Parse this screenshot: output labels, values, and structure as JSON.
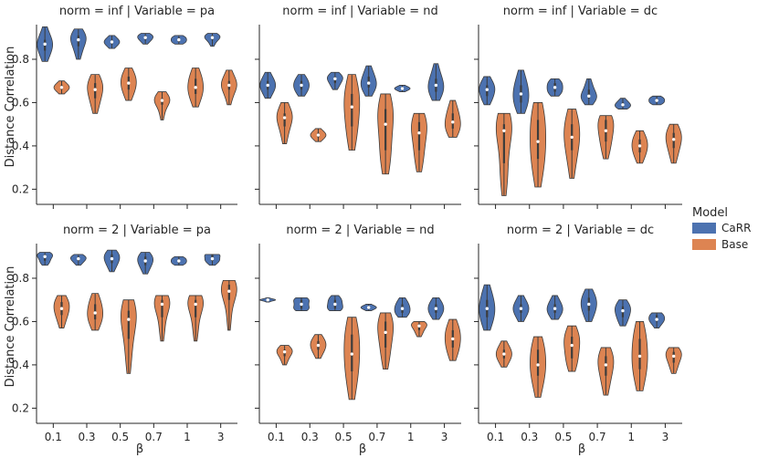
{
  "chart_data": {
    "type": "violin",
    "ylabel": "Distance Correlation",
    "xlabel": "β",
    "categories": [
      "0.1",
      "0.3",
      "0.5",
      "0.7",
      "1",
      "3"
    ],
    "ylim": [
      0.13,
      0.96
    ],
    "yticks": [
      0.2,
      0.4,
      0.6,
      0.8
    ],
    "legend": {
      "title": "Model",
      "position": "right",
      "entries": [
        {
          "name": "CaRR",
          "color": "#4c72b0"
        },
        {
          "name": "Base",
          "color": "#dd8452"
        }
      ]
    },
    "panels": [
      {
        "title": "norm = inf | Variable = pa",
        "series": [
          {
            "name": "CaRR",
            "violins": [
              {
                "min": 0.79,
                "q1": 0.84,
                "median": 0.87,
                "q3": 0.89,
                "max": 0.95
              },
              {
                "min": 0.8,
                "q1": 0.86,
                "median": 0.89,
                "q3": 0.91,
                "max": 0.94
              },
              {
                "min": 0.85,
                "q1": 0.87,
                "median": 0.88,
                "q3": 0.89,
                "max": 0.91
              },
              {
                "min": 0.87,
                "q1": 0.89,
                "median": 0.9,
                "q3": 0.91,
                "max": 0.92
              },
              {
                "min": 0.87,
                "q1": 0.88,
                "median": 0.89,
                "q3": 0.9,
                "max": 0.91
              },
              {
                "min": 0.86,
                "q1": 0.89,
                "median": 0.9,
                "q3": 0.91,
                "max": 0.92
              }
            ]
          },
          {
            "name": "Base",
            "violins": [
              {
                "min": 0.64,
                "q1": 0.66,
                "median": 0.67,
                "q3": 0.68,
                "max": 0.7
              },
              {
                "min": 0.55,
                "q1": 0.62,
                "median": 0.66,
                "q3": 0.69,
                "max": 0.73
              },
              {
                "min": 0.61,
                "q1": 0.66,
                "median": 0.69,
                "q3": 0.72,
                "max": 0.76
              },
              {
                "min": 0.52,
                "q1": 0.59,
                "median": 0.61,
                "q3": 0.62,
                "max": 0.65
              },
              {
                "min": 0.58,
                "q1": 0.64,
                "median": 0.67,
                "q3": 0.71,
                "max": 0.76
              },
              {
                "min": 0.59,
                "q1": 0.66,
                "median": 0.68,
                "q3": 0.7,
                "max": 0.75
              }
            ]
          }
        ]
      },
      {
        "title": "norm = inf | Variable = nd",
        "series": [
          {
            "name": "CaRR",
            "violins": [
              {
                "min": 0.62,
                "q1": 0.66,
                "median": 0.68,
                "q3": 0.7,
                "max": 0.74
              },
              {
                "min": 0.63,
                "q1": 0.66,
                "median": 0.68,
                "q3": 0.7,
                "max": 0.73
              },
              {
                "min": 0.66,
                "q1": 0.69,
                "median": 0.71,
                "q3": 0.72,
                "max": 0.74
              },
              {
                "min": 0.63,
                "q1": 0.67,
                "median": 0.69,
                "q3": 0.72,
                "max": 0.77
              },
              {
                "min": 0.65,
                "q1": 0.66,
                "median": 0.665,
                "q3": 0.67,
                "max": 0.68
              },
              {
                "min": 0.61,
                "q1": 0.65,
                "median": 0.68,
                "q3": 0.71,
                "max": 0.78
              }
            ]
          },
          {
            "name": "Base",
            "violins": [
              {
                "min": 0.41,
                "q1": 0.49,
                "median": 0.53,
                "q3": 0.55,
                "max": 0.6
              },
              {
                "min": 0.42,
                "q1": 0.44,
                "median": 0.45,
                "q3": 0.46,
                "max": 0.48
              },
              {
                "min": 0.38,
                "q1": 0.49,
                "median": 0.58,
                "q3": 0.64,
                "max": 0.73
              },
              {
                "min": 0.27,
                "q1": 0.38,
                "median": 0.5,
                "q3": 0.57,
                "max": 0.64
              },
              {
                "min": 0.28,
                "q1": 0.38,
                "median": 0.46,
                "q3": 0.51,
                "max": 0.55
              },
              {
                "min": 0.44,
                "q1": 0.48,
                "median": 0.51,
                "q3": 0.55,
                "max": 0.61
              }
            ]
          }
        ]
      },
      {
        "title": "norm = inf | Variable = dc",
        "series": [
          {
            "name": "CaRR",
            "violins": [
              {
                "min": 0.59,
                "q1": 0.63,
                "median": 0.66,
                "q3": 0.68,
                "max": 0.72
              },
              {
                "min": 0.55,
                "q1": 0.6,
                "median": 0.64,
                "q3": 0.68,
                "max": 0.75
              },
              {
                "min": 0.63,
                "q1": 0.65,
                "median": 0.67,
                "q3": 0.69,
                "max": 0.71
              },
              {
                "min": 0.59,
                "q1": 0.62,
                "median": 0.63,
                "q3": 0.66,
                "max": 0.71
              },
              {
                "min": 0.57,
                "q1": 0.58,
                "median": 0.59,
                "q3": 0.6,
                "max": 0.62
              },
              {
                "min": 0.59,
                "q1": 0.6,
                "median": 0.61,
                "q3": 0.62,
                "max": 0.63
              }
            ]
          },
          {
            "name": "Base",
            "violins": [
              {
                "min": 0.17,
                "q1": 0.32,
                "median": 0.47,
                "q3": 0.5,
                "max": 0.55
              },
              {
                "min": 0.21,
                "q1": 0.34,
                "median": 0.42,
                "q3": 0.52,
                "max": 0.6
              },
              {
                "min": 0.25,
                "q1": 0.38,
                "median": 0.44,
                "q3": 0.5,
                "max": 0.57
              },
              {
                "min": 0.34,
                "q1": 0.42,
                "median": 0.47,
                "q3": 0.52,
                "max": 0.54
              },
              {
                "min": 0.32,
                "q1": 0.37,
                "median": 0.4,
                "q3": 0.43,
                "max": 0.47
              },
              {
                "min": 0.32,
                "q1": 0.39,
                "median": 0.43,
                "q3": 0.46,
                "max": 0.5
              }
            ]
          }
        ]
      },
      {
        "title": "norm = 2 | Variable = pa",
        "series": [
          {
            "name": "CaRR",
            "violins": [
              {
                "min": 0.86,
                "q1": 0.88,
                "median": 0.9,
                "q3": 0.91,
                "max": 0.92
              },
              {
                "min": 0.86,
                "q1": 0.88,
                "median": 0.89,
                "q3": 0.9,
                "max": 0.91
              },
              {
                "min": 0.83,
                "q1": 0.87,
                "median": 0.89,
                "q3": 0.91,
                "max": 0.93
              },
              {
                "min": 0.82,
                "q1": 0.86,
                "median": 0.88,
                "q3": 0.9,
                "max": 0.92
              },
              {
                "min": 0.86,
                "q1": 0.87,
                "median": 0.88,
                "q3": 0.89,
                "max": 0.9
              },
              {
                "min": 0.86,
                "q1": 0.88,
                "median": 0.89,
                "q3": 0.91,
                "max": 0.91
              }
            ]
          },
          {
            "name": "Base",
            "violins": [
              {
                "min": 0.57,
                "q1": 0.63,
                "median": 0.66,
                "q3": 0.69,
                "max": 0.72
              },
              {
                "min": 0.56,
                "q1": 0.61,
                "median": 0.64,
                "q3": 0.68,
                "max": 0.73
              },
              {
                "min": 0.36,
                "q1": 0.52,
                "median": 0.61,
                "q3": 0.65,
                "max": 0.7
              },
              {
                "min": 0.51,
                "q1": 0.62,
                "median": 0.68,
                "q3": 0.7,
                "max": 0.72
              },
              {
                "min": 0.51,
                "q1": 0.62,
                "median": 0.68,
                "q3": 0.7,
                "max": 0.72
              },
              {
                "min": 0.56,
                "q1": 0.7,
                "median": 0.74,
                "q3": 0.77,
                "max": 0.79
              }
            ]
          }
        ]
      },
      {
        "title": "norm = 2 | Variable = nd",
        "series": [
          {
            "name": "CaRR",
            "violins": [
              {
                "min": 0.69,
                "q1": 0.7,
                "median": 0.7,
                "q3": 0.7,
                "max": 0.71
              },
              {
                "min": 0.65,
                "q1": 0.66,
                "median": 0.68,
                "q3": 0.7,
                "max": 0.71
              },
              {
                "min": 0.65,
                "q1": 0.66,
                "median": 0.68,
                "q3": 0.7,
                "max": 0.72
              },
              {
                "min": 0.65,
                "q1": 0.66,
                "median": 0.665,
                "q3": 0.67,
                "max": 0.68
              },
              {
                "min": 0.62,
                "q1": 0.64,
                "median": 0.66,
                "q3": 0.68,
                "max": 0.71
              },
              {
                "min": 0.61,
                "q1": 0.64,
                "median": 0.66,
                "q3": 0.68,
                "max": 0.71
              }
            ]
          },
          {
            "name": "Base",
            "violins": [
              {
                "min": 0.4,
                "q1": 0.44,
                "median": 0.46,
                "q3": 0.47,
                "max": 0.49
              },
              {
                "min": 0.43,
                "q1": 0.47,
                "median": 0.49,
                "q3": 0.51,
                "max": 0.54
              },
              {
                "min": 0.24,
                "q1": 0.37,
                "median": 0.45,
                "q3": 0.54,
                "max": 0.62
              },
              {
                "min": 0.38,
                "q1": 0.48,
                "median": 0.55,
                "q3": 0.6,
                "max": 0.64
              },
              {
                "min": 0.53,
                "q1": 0.56,
                "median": 0.58,
                "q3": 0.59,
                "max": 0.6
              },
              {
                "min": 0.42,
                "q1": 0.48,
                "median": 0.52,
                "q3": 0.56,
                "max": 0.61
              }
            ]
          }
        ]
      },
      {
        "title": "norm = 2 | Variable = dc",
        "series": [
          {
            "name": "CaRR",
            "violins": [
              {
                "min": 0.56,
                "q1": 0.62,
                "median": 0.66,
                "q3": 0.7,
                "max": 0.77
              },
              {
                "min": 0.6,
                "q1": 0.64,
                "median": 0.66,
                "q3": 0.68,
                "max": 0.72
              },
              {
                "min": 0.61,
                "q1": 0.64,
                "median": 0.66,
                "q3": 0.68,
                "max": 0.72
              },
              {
                "min": 0.6,
                "q1": 0.65,
                "median": 0.68,
                "q3": 0.71,
                "max": 0.75
              },
              {
                "min": 0.58,
                "q1": 0.62,
                "median": 0.65,
                "q3": 0.67,
                "max": 0.7
              },
              {
                "min": 0.57,
                "q1": 0.6,
                "median": 0.61,
                "q3": 0.63,
                "max": 0.64
              }
            ]
          },
          {
            "name": "Base",
            "violins": [
              {
                "min": 0.39,
                "q1": 0.43,
                "median": 0.45,
                "q3": 0.47,
                "max": 0.51
              },
              {
                "min": 0.25,
                "q1": 0.35,
                "median": 0.4,
                "q3": 0.47,
                "max": 0.53
              },
              {
                "min": 0.37,
                "q1": 0.43,
                "median": 0.49,
                "q3": 0.53,
                "max": 0.58
              },
              {
                "min": 0.26,
                "q1": 0.35,
                "median": 0.4,
                "q3": 0.44,
                "max": 0.48
              },
              {
                "min": 0.28,
                "q1": 0.38,
                "median": 0.44,
                "q3": 0.52,
                "max": 0.6
              },
              {
                "min": 0.36,
                "q1": 0.41,
                "median": 0.44,
                "q3": 0.46,
                "max": 0.48
              }
            ]
          }
        ]
      }
    ]
  }
}
